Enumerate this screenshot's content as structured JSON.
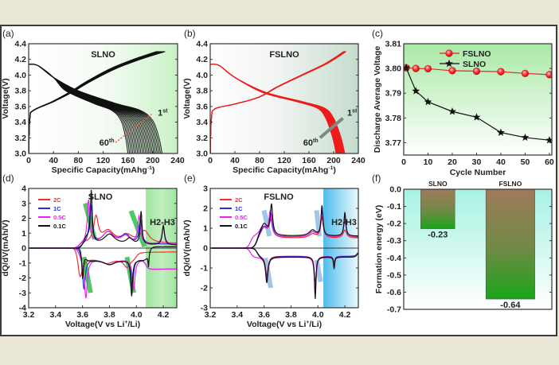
{
  "figure": {
    "panels": [
      "(a)",
      "(b)",
      "(c)",
      "(d)",
      "(e)",
      "(f)"
    ]
  },
  "chart_data": [
    {
      "type": "line",
      "title": "SLNO",
      "xlabel": {
        "main": "Specific Capacity(mAhg",
        "sup": "-1",
        "end": ")"
      },
      "ylabel": "Voltage(V)",
      "xlim": [
        0,
        240
      ],
      "ylim": [
        3.0,
        4.4
      ],
      "xticks": [
        "0",
        "40",
        "80",
        "120",
        "160",
        "200",
        "240"
      ],
      "yticks": [
        "3.0",
        "3.2",
        "3.4",
        "3.6",
        "3.8",
        "4.0",
        "4.2",
        "4.4"
      ],
      "color": "#111111",
      "cycles": 60,
      "capacity_1st": 215,
      "capacity_60th": 160,
      "charge_1st": [
        [
          0,
          3.0
        ],
        [
          2,
          3.45
        ],
        [
          8,
          3.55
        ],
        [
          40,
          3.66
        ],
        [
          70,
          3.78
        ],
        [
          100,
          3.92
        ],
        [
          140,
          4.08
        ],
        [
          180,
          4.2
        ],
        [
          220,
          4.3
        ]
      ],
      "discharge_1st": [
        [
          0,
          4.14
        ],
        [
          15,
          4.12
        ],
        [
          40,
          3.97
        ],
        [
          80,
          3.8
        ],
        [
          140,
          3.64
        ],
        [
          180,
          3.55
        ],
        [
          200,
          3.42
        ],
        [
          210,
          3.2
        ],
        [
          215,
          3.0
        ]
      ],
      "annotations": [
        {
          "text": "1",
          "sup": "st"
        },
        {
          "text": "60",
          "sup": "th"
        }
      ]
    },
    {
      "type": "line",
      "title": "FSLNO",
      "xlabel": {
        "main": "Specific Capacity(mAhg",
        "sup": "-1",
        "end": ")"
      },
      "ylabel": "Voltage(V)",
      "xlim": [
        0,
        240
      ],
      "ylim": [
        3.0,
        4.4
      ],
      "xticks": [
        "0",
        "40",
        "80",
        "120",
        "160",
        "200",
        "240"
      ],
      "yticks": [
        "3.0",
        "3.2",
        "3.4",
        "3.6",
        "3.8",
        "4.0",
        "4.2",
        "4.4"
      ],
      "color": "#ee1c1c",
      "cycles": 60,
      "capacity_1st": 218,
      "capacity_60th": 204,
      "charge_1st": [
        [
          0,
          3.0
        ],
        [
          2,
          3.45
        ],
        [
          8,
          3.57
        ],
        [
          40,
          3.63
        ],
        [
          80,
          3.72
        ],
        [
          110,
          3.85
        ],
        [
          150,
          4.0
        ],
        [
          190,
          4.15
        ],
        [
          220,
          4.3
        ]
      ],
      "discharge_1st": [
        [
          0,
          4.14
        ],
        [
          15,
          4.12
        ],
        [
          40,
          3.97
        ],
        [
          90,
          3.78
        ],
        [
          150,
          3.66
        ],
        [
          185,
          3.58
        ],
        [
          200,
          3.45
        ],
        [
          212,
          3.2
        ],
        [
          218,
          3.0
        ]
      ],
      "annotations": [
        {
          "text": "1",
          "sup": "st"
        },
        {
          "text": "60",
          "sup": "th"
        }
      ]
    },
    {
      "type": "line",
      "title": "",
      "xlabel": {
        "main": "Cycle Number",
        "sup": "",
        "end": ""
      },
      "ylabel": "Discharge Average Voltage",
      "xlim": [
        0,
        61
      ],
      "ylim": [
        3.765,
        3.81
      ],
      "xticks": [
        "0",
        "10",
        "20",
        "30",
        "40",
        "50",
        "60"
      ],
      "yticks": [
        "3.77",
        "3.78",
        "3.79",
        "3.80",
        "3.81"
      ],
      "x": [
        1,
        5,
        10,
        20,
        30,
        40,
        50,
        60
      ],
      "series": [
        {
          "name": "FSLNO",
          "color": "#ee2222",
          "marker": "circle",
          "values": [
            3.8003,
            3.8,
            3.7999,
            3.7991,
            3.7989,
            3.7987,
            3.798,
            3.7975
          ]
        },
        {
          "name": "SLNO",
          "color": "#111111",
          "marker": "star",
          "values": [
            3.8003,
            3.7909,
            3.7865,
            3.7826,
            3.7803,
            3.7741,
            3.7721,
            3.771
          ]
        }
      ],
      "legend": "top"
    },
    {
      "type": "line",
      "title": "SLNO",
      "region_label": "H2-H3",
      "region": [
        4.07,
        4.3
      ],
      "region_color": "#5fd86a",
      "xlabel": {
        "main": "Voltage(V vs Li",
        "sup": "+",
        "end": "/Li)"
      },
      "ylabel": "dQ/dV(mAh/V)",
      "xlim": [
        3.2,
        4.3
      ],
      "ylim": [
        -4,
        4
      ],
      "xticks": [
        "3.2",
        "3.4",
        "3.6",
        "3.8",
        "4.0",
        "4.2"
      ],
      "yticks": [
        "-4",
        "-3",
        "-2",
        "-1",
        "0",
        "1",
        "2",
        "3",
        "4"
      ],
      "series": [
        {
          "name": "2C",
          "color": "#ee3030",
          "on": 3.58,
          "off": 4.0,
          "cbase": 0.3,
          "dbase": -0.65,
          "tail": -0.25,
          "peaks": [
            [
              3.7,
              1.7,
              0.02
            ],
            [
              3.79,
              0.8,
              0.05
            ],
            [
              3.93,
              0.5,
              0.05
            ],
            [
              4.06,
              0.8,
              0.04
            ],
            [
              3.58,
              -1.6,
              0.02
            ],
            [
              3.78,
              -0.35,
              0.06
            ],
            [
              3.93,
              -0.6,
              0.03
            ]
          ]
        },
        {
          "name": "1C",
          "color": "#2233dd",
          "on": 3.6,
          "off": 4.07,
          "cbase": 0.25,
          "dbase": -0.75,
          "tail": -1.4,
          "peaks": [
            [
              3.66,
              2.6,
              0.012
            ],
            [
              3.79,
              0.8,
              0.05
            ],
            [
              3.92,
              0.6,
              0.04
            ],
            [
              4.03,
              1.6,
              0.012
            ],
            [
              3.61,
              -2.2,
              0.012
            ],
            [
              3.8,
              -0.35,
              0.05
            ],
            [
              3.97,
              -1.9,
              0.01
            ]
          ]
        },
        {
          "name": "0.5C",
          "color": "#ee22ee",
          "on": 3.58,
          "off": 4.07,
          "cbase": 0.25,
          "dbase": -0.75,
          "tail": -1.4,
          "peaks": [
            [
              3.645,
              2.9,
              0.012
            ],
            [
              3.79,
              0.8,
              0.05
            ],
            [
              3.92,
              0.5,
              0.04
            ],
            [
              4.02,
              1.8,
              0.012
            ],
            [
              4.2,
              1.1,
              0.012
            ],
            [
              3.625,
              -2.6,
              0.012
            ],
            [
              3.8,
              -0.35,
              0.05
            ],
            [
              3.98,
              -2.0,
              0.012
            ]
          ]
        },
        {
          "name": "0.1C",
          "color": "#111111",
          "on": 3.62,
          "off": 4.09,
          "cbase": 0.2,
          "dbase": -0.8,
          "tail": 0.1,
          "peaks": [
            [
              3.665,
              3.4,
              0.008
            ],
            [
              3.63,
              0.5,
              0.03
            ],
            [
              3.8,
              0.7,
              0.05
            ],
            [
              3.95,
              0.4,
              0.03
            ],
            [
              4.035,
              2.2,
              0.008
            ],
            [
              4.2,
              1.3,
              0.01
            ],
            [
              3.6,
              -2.6,
              0.008
            ],
            [
              3.8,
              -0.3,
              0.05
            ],
            [
              3.965,
              -2.4,
              0.008
            ],
            [
              4.09,
              -0.9,
              0.004
            ]
          ]
        }
      ],
      "legend": "top-left"
    },
    {
      "type": "line",
      "title": "FSLNO",
      "region_label": "H2-H3",
      "region": [
        4.04,
        4.3
      ],
      "region_color": "#36b4ea",
      "xlabel": {
        "main": "Voltage(V vs Li",
        "sup": "+",
        "end": "/Li)"
      },
      "ylabel": "dQ/dV(mAh/V)",
      "xlim": [
        3.2,
        4.3
      ],
      "ylim": [
        -3,
        3
      ],
      "xticks": [
        "3.2",
        "3.4",
        "3.6",
        "3.8",
        "4.0",
        "4.2"
      ],
      "yticks": [
        "-3",
        "-2",
        "-1",
        "0",
        "1",
        "2",
        "3"
      ],
      "series": [
        {
          "name": "2C",
          "color": "#ee3030",
          "on": 3.55,
          "off": 4.3,
          "cbase": 0.5,
          "dbase": -0.4,
          "tail": 0,
          "peaks": [
            [
              3.6,
              0.5,
              0.03
            ],
            [
              3.65,
              0.8,
              0.015
            ],
            [
              3.96,
              0.2,
              0.03
            ],
            [
              4.03,
              1.0,
              0.012
            ],
            [
              4.2,
              0.4,
              0.015
            ],
            [
              3.62,
              -1.0,
              0.012
            ],
            [
              3.98,
              -1.3,
              0.01
            ],
            [
              4.12,
              -0.3,
              0.008
            ]
          ]
        },
        {
          "name": "1C",
          "color": "#2233dd",
          "on": 3.55,
          "off": 4.3,
          "cbase": 0.55,
          "dbase": -0.42,
          "tail": 0,
          "peaks": [
            [
              3.6,
              0.5,
              0.03
            ],
            [
              3.65,
              1.1,
              0.012
            ],
            [
              3.96,
              0.25,
              0.03
            ],
            [
              4.03,
              1.3,
              0.01
            ],
            [
              4.2,
              0.8,
              0.012
            ],
            [
              3.62,
              -1.1,
              0.012
            ],
            [
              3.98,
              -1.7,
              0.008
            ],
            [
              4.12,
              -0.4,
              0.006
            ]
          ]
        },
        {
          "name": "0.5C",
          "color": "#ee22ee",
          "on": 3.5,
          "off": 4.3,
          "cbase": 0.55,
          "dbase": -0.45,
          "tail": 0,
          "peaks": [
            [
              3.59,
              0.5,
              0.03
            ],
            [
              3.645,
              1.2,
              0.012
            ],
            [
              3.96,
              0.25,
              0.03
            ],
            [
              4.03,
              1.4,
              0.01
            ],
            [
              4.2,
              1.0,
              0.01
            ],
            [
              3.62,
              -1.2,
              0.012
            ],
            [
              3.98,
              -1.9,
              0.008
            ],
            [
              4.12,
              -0.5,
              0.006
            ]
          ]
        },
        {
          "name": "0.1C",
          "color": "#111111",
          "on": 3.55,
          "off": 4.3,
          "cbase": 0.6,
          "dbase": -0.45,
          "tail": 0,
          "peaks": [
            [
              3.6,
              0.6,
              0.03
            ],
            [
              3.655,
              1.5,
              0.01
            ],
            [
              3.96,
              0.3,
              0.03
            ],
            [
              4.03,
              1.5,
              0.008
            ],
            [
              4.2,
              1.2,
              0.008
            ],
            [
              3.62,
              -1.3,
              0.01
            ],
            [
              3.98,
              -2.1,
              0.006
            ],
            [
              4.12,
              -0.6,
              0.005
            ]
          ]
        }
      ],
      "legend": "top-left"
    },
    {
      "type": "bar",
      "title": "",
      "xlabel": {
        "main": "",
        "sup": "",
        "end": ""
      },
      "ylabel": "Formation energy (eV)",
      "ylim": [
        -0.7,
        0
      ],
      "yticks": [
        "0.0",
        "-0.1",
        "-0.2",
        "-0.3",
        "-0.4",
        "-0.5",
        "-0.6",
        "-0.7"
      ],
      "categories": [
        "SLNO",
        "FSLNO"
      ],
      "values": [
        -0.23,
        -0.64
      ],
      "value_labels": [
        "-0.23",
        "-0.64"
      ]
    }
  ]
}
